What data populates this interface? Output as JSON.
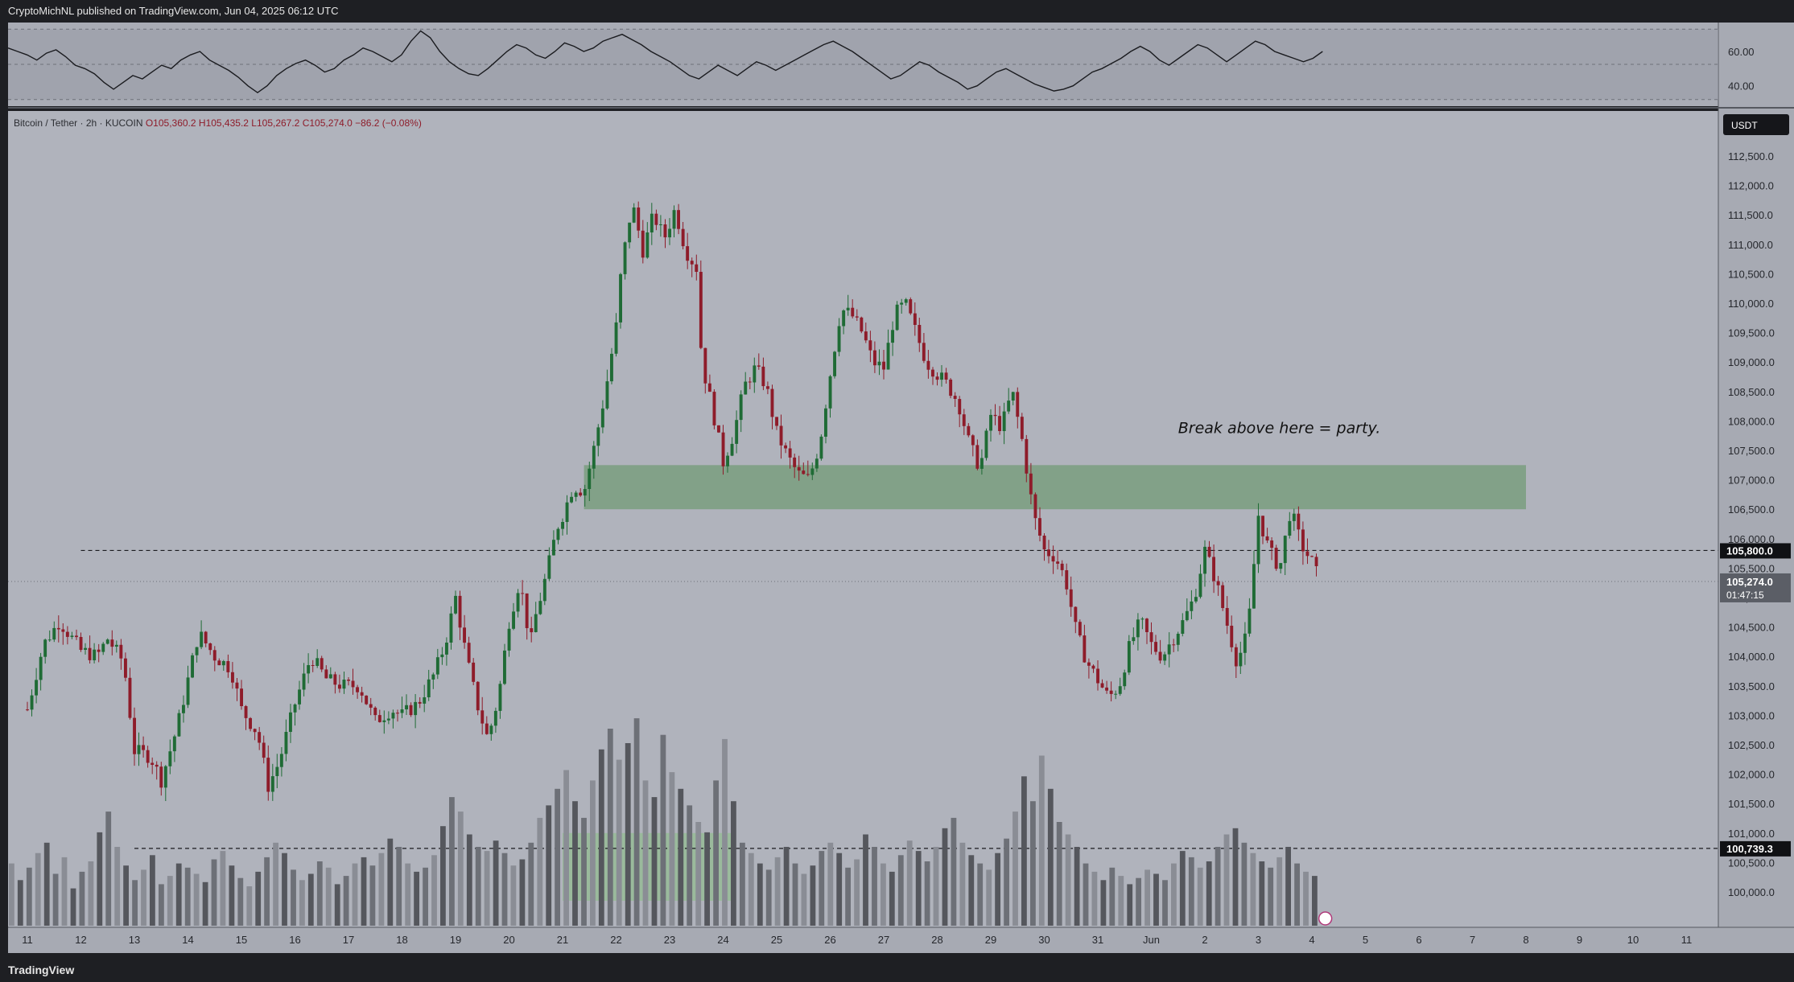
{
  "header": {
    "published": "CryptoMichNL published on TradingView.com, Jun 04, 2025 06:12 UTC"
  },
  "footer": {
    "brand": "TradingView"
  },
  "colors": {
    "background": "#b0b3bc",
    "up": "#1f6b35",
    "down": "#8e1c2a",
    "zone": "#7d9e82",
    "volume_zone": "#8fbf8a"
  },
  "chart_data": [
    {
      "type": "line",
      "name": "oscillator",
      "yticks": [
        60.0,
        40.0
      ],
      "ylim": [
        30,
        75
      ],
      "values": [
        62,
        60,
        58,
        55,
        59,
        61,
        57,
        52,
        50,
        47,
        42,
        38,
        42,
        46,
        44,
        48,
        52,
        50,
        55,
        58,
        60,
        55,
        52,
        49,
        45,
        40,
        36,
        40,
        46,
        50,
        53,
        55,
        52,
        48,
        50,
        55,
        58,
        62,
        60,
        57,
        54,
        58,
        66,
        72,
        68,
        60,
        54,
        50,
        47,
        46,
        50,
        55,
        60,
        64,
        62,
        58,
        56,
        60,
        65,
        63,
        60,
        62,
        66,
        68,
        70,
        67,
        64,
        60,
        57,
        54,
        50,
        46,
        44,
        48,
        52,
        49,
        46,
        50,
        54,
        52,
        49,
        52,
        55,
        58,
        61,
        64,
        66,
        63,
        60,
        56,
        52,
        48,
        44,
        46,
        50,
        54,
        52,
        48,
        45,
        42,
        38,
        40,
        44,
        48,
        50,
        47,
        44,
        41,
        39,
        37,
        38,
        40,
        44,
        48,
        50,
        53,
        56,
        60,
        63,
        60,
        55,
        52,
        56,
        60,
        64,
        62,
        58,
        54,
        58,
        62,
        66,
        64,
        60,
        58,
        56,
        54,
        56,
        60
      ],
      "ylabel": ""
    },
    {
      "type": "candlestick",
      "name": "price",
      "symbol": "Bitcoin / Tether · 2h · KUCOIN",
      "ohlc_text": {
        "o": "O105,360.2",
        "h": "H105,435.2",
        "l": "L105,267.2",
        "c": "C105,274.0",
        "chg": "−86.2 (−0.08%)"
      },
      "currency": "USDT",
      "ylim": [
        99600,
        112900
      ],
      "yticks": [
        "112,500.0",
        "112,000.0",
        "111,500.0",
        "111,000.0",
        "110,500.0",
        "110,000.0",
        "109,500.0",
        "109,000.0",
        "108,500.0",
        "108,000.0",
        "107,500.0",
        "107,000.0",
        "106,500.0",
        "106,000.0",
        "105,500.0",
        "105,000.0",
        "104,500.0",
        "104,000.0",
        "103,500.0",
        "103,000.0",
        "102,500.0",
        "102,000.0",
        "101,500.0",
        "101,000.0",
        "100,500.0",
        "100,000.0"
      ],
      "ytick_values": [
        112500,
        112000,
        111500,
        111000,
        110500,
        110000,
        109500,
        109000,
        108500,
        108000,
        107500,
        107000,
        106500,
        106000,
        105500,
        105000,
        104500,
        104000,
        103500,
        103000,
        102500,
        102000,
        101500,
        101000,
        100500,
        100000
      ],
      "xticks": [
        "11",
        "12",
        "13",
        "14",
        "15",
        "16",
        "17",
        "18",
        "19",
        "20",
        "21",
        "22",
        "23",
        "24",
        "25",
        "26",
        "27",
        "28",
        "29",
        "30",
        "31",
        "Jun",
        "2",
        "3",
        "4",
        "5",
        "6",
        "7",
        "8",
        "9",
        "10",
        "11"
      ],
      "x_day_start": 0,
      "price_path": [
        [
          0,
          103100
        ],
        [
          0.3,
          104200
        ],
        [
          0.6,
          104600
        ],
        [
          1.0,
          104100
        ],
        [
          1.3,
          104000
        ],
        [
          1.5,
          104300
        ],
        [
          1.8,
          103900
        ],
        [
          2.0,
          102400
        ],
        [
          2.3,
          102300
        ],
        [
          2.5,
          101900
        ],
        [
          2.8,
          102800
        ],
        [
          3.0,
          103600
        ],
        [
          3.2,
          104400
        ],
        [
          3.5,
          104000
        ],
        [
          3.8,
          103800
        ],
        [
          4.0,
          103100
        ],
        [
          4.3,
          102700
        ],
        [
          4.5,
          101800
        ],
        [
          4.7,
          102200
        ],
        [
          5.0,
          103200
        ],
        [
          5.3,
          104000
        ],
        [
          5.6,
          103600
        ],
        [
          5.9,
          103500
        ],
        [
          6.2,
          103500
        ],
        [
          6.5,
          102900
        ],
        [
          6.8,
          103100
        ],
        [
          7.0,
          103000
        ],
        [
          7.3,
          103200
        ],
        [
          7.6,
          103700
        ],
        [
          7.8,
          104200
        ],
        [
          8.0,
          105000
        ],
        [
          8.2,
          104000
        ],
        [
          8.4,
          103200
        ],
        [
          8.6,
          102600
        ],
        [
          8.8,
          103300
        ],
        [
          9.0,
          104600
        ],
        [
          9.2,
          105300
        ],
        [
          9.4,
          104200
        ],
        [
          9.5,
          104700
        ],
        [
          9.7,
          105400
        ],
        [
          9.9,
          106200
        ],
        [
          10.0,
          106400
        ],
        [
          10.2,
          106900
        ],
        [
          10.4,
          106800
        ],
        [
          10.6,
          107600
        ],
        [
          10.8,
          108500
        ],
        [
          11.0,
          109600
        ],
        [
          11.1,
          110600
        ],
        [
          11.3,
          111700
        ],
        [
          11.5,
          110900
        ],
        [
          11.7,
          111500
        ],
        [
          11.9,
          111100
        ],
        [
          12.1,
          111600
        ],
        [
          12.3,
          110900
        ],
        [
          12.5,
          110600
        ],
        [
          12.6,
          109000
        ],
        [
          12.8,
          108200
        ],
        [
          13.0,
          107300
        ],
        [
          13.2,
          107800
        ],
        [
          13.4,
          108600
        ],
        [
          13.6,
          108900
        ],
        [
          13.8,
          108600
        ],
        [
          14.0,
          107800
        ],
        [
          14.2,
          107400
        ],
        [
          14.4,
          107100
        ],
        [
          14.6,
          107000
        ],
        [
          14.8,
          107600
        ],
        [
          15.0,
          108800
        ],
        [
          15.2,
          109900
        ],
        [
          15.4,
          109800
        ],
        [
          15.6,
          109500
        ],
        [
          15.8,
          109000
        ],
        [
          16.0,
          108900
        ],
        [
          16.2,
          109800
        ],
        [
          16.4,
          110000
        ],
        [
          16.6,
          109500
        ],
        [
          16.8,
          109000
        ],
        [
          17.0,
          108800
        ],
        [
          17.2,
          108600
        ],
        [
          17.4,
          108300
        ],
        [
          17.6,
          107600
        ],
        [
          17.8,
          107200
        ],
        [
          18.0,
          108100
        ],
        [
          18.2,
          107900
        ],
        [
          18.4,
          108500
        ],
        [
          18.6,
          107600
        ],
        [
          18.8,
          106400
        ],
        [
          19.0,
          105800
        ],
        [
          19.2,
          105700
        ],
        [
          19.4,
          105300
        ],
        [
          19.6,
          104400
        ],
        [
          19.8,
          103900
        ],
        [
          20.0,
          103600
        ],
        [
          20.2,
          103300
        ],
        [
          20.4,
          103500
        ],
        [
          20.6,
          104200
        ],
        [
          20.8,
          104600
        ],
        [
          21.0,
          104200
        ],
        [
          21.2,
          104000
        ],
        [
          21.4,
          104300
        ],
        [
          21.6,
          104600
        ],
        [
          21.8,
          105000
        ],
        [
          22.0,
          105800
        ],
        [
          22.2,
          105300
        ],
        [
          22.4,
          104600
        ],
        [
          22.6,
          103900
        ],
        [
          22.8,
          104400
        ],
        [
          23.0,
          106400
        ],
        [
          23.2,
          105800
        ],
        [
          23.4,
          105500
        ],
        [
          23.6,
          106500
        ],
        [
          23.8,
          105900
        ],
        [
          24.0,
          105600
        ],
        [
          24.15,
          105274
        ]
      ],
      "volume": {
        "levels": [
          0.3,
          0.22,
          0.28,
          0.35,
          0.4,
          0.25,
          0.33,
          0.18,
          0.26,
          0.31,
          0.45,
          0.55,
          0.38,
          0.29,
          0.22,
          0.27,
          0.34,
          0.2,
          0.24,
          0.3,
          0.28,
          0.25,
          0.21,
          0.32,
          0.36,
          0.29,
          0.23,
          0.19,
          0.26,
          0.33,
          0.4,
          0.35,
          0.27,
          0.22,
          0.25,
          0.31,
          0.28,
          0.2,
          0.24,
          0.3,
          0.33,
          0.29,
          0.35,
          0.42,
          0.38,
          0.3,
          0.26,
          0.28,
          0.34,
          0.48,
          0.62,
          0.55,
          0.44,
          0.38,
          0.36,
          0.41,
          0.35,
          0.29,
          0.32,
          0.4,
          0.52,
          0.58,
          0.66,
          0.75,
          0.6,
          0.52,
          0.7,
          0.85,
          0.95,
          0.8,
          0.88,
          1.0,
          0.7,
          0.62,
          0.92,
          0.74,
          0.66,
          0.58,
          0.5,
          0.45,
          0.7,
          0.9,
          0.6,
          0.4,
          0.35,
          0.3,
          0.27,
          0.33,
          0.38,
          0.3,
          0.25,
          0.29,
          0.36,
          0.4,
          0.35,
          0.28,
          0.32,
          0.44,
          0.38,
          0.3,
          0.26,
          0.34,
          0.41,
          0.36,
          0.31,
          0.38,
          0.47,
          0.52,
          0.4,
          0.34,
          0.3,
          0.27,
          0.35,
          0.42,
          0.55,
          0.72,
          0.6,
          0.82,
          0.66,
          0.5,
          0.44,
          0.38,
          0.3,
          0.26,
          0.22,
          0.28,
          0.24,
          0.2,
          0.23,
          0.27,
          0.25,
          0.22,
          0.3,
          0.36,
          0.33,
          0.28,
          0.31,
          0.38,
          0.44,
          0.47,
          0.4,
          0.35,
          0.31,
          0.28,
          0.33,
          0.38,
          0.3,
          0.26,
          0.24
        ],
        "vmax_price": 102950
      },
      "levels": [
        {
          "name": "resistance",
          "price": 105800.0,
          "label": "105,800.0",
          "from_day": 1.0
        },
        {
          "name": "support",
          "price": 100739.3,
          "label": "100,739.3",
          "from_day": 2.0
        },
        {
          "name": "last",
          "price": 105274.0,
          "label": "105,274.0",
          "countdown": "01:47:15"
        }
      ],
      "zones": [
        {
          "name": "break-zone",
          "from_day": 10.4,
          "to_day": 28.0,
          "top": 107250,
          "bottom": 106500
        },
        {
          "name": "volume-zone",
          "from_day": 10.0,
          "to_day": 13.2,
          "top": 101000,
          "bottom": 99850
        }
      ],
      "annotation": {
        "text": "Break above here = party.",
        "day": 21.5,
        "price": 107900
      }
    }
  ]
}
